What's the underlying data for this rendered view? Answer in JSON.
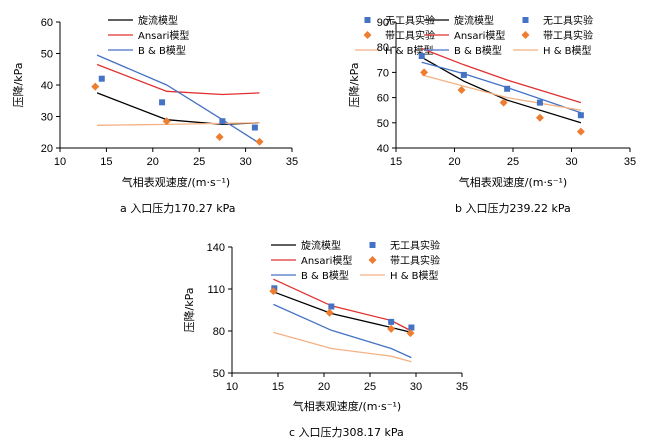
{
  "chart_data": [
    {
      "id": "a",
      "type": "line+scatter",
      "caption": "a  入口压力170.27 kPa",
      "xlabel": "气相表观速度/(m·s⁻¹)",
      "ylabel": "压降/kPa",
      "xlim": [
        10,
        35
      ],
      "ylim": [
        20,
        60
      ],
      "xticks": [
        10,
        15,
        20,
        25,
        30,
        35
      ],
      "yticks": [
        20,
        30,
        40,
        50,
        60
      ],
      "lines": [
        {
          "name": "旋流模型",
          "color": "#000000",
          "x": [
            14,
            21.5,
            27.5,
            31.5
          ],
          "y": [
            37.5,
            29,
            27.5,
            28
          ]
        },
        {
          "name": "Ansari模型",
          "color": "#e03030",
          "x": [
            14,
            21.5,
            27.5,
            31.5
          ],
          "y": [
            46.5,
            38,
            37,
            37.5
          ]
        },
        {
          "name": "B & B模型",
          "color": "#4472c4",
          "x": [
            14,
            21.5,
            27.5,
            31.5
          ],
          "y": [
            49.5,
            40,
            29,
            21.5
          ]
        },
        {
          "name": "H & B模型",
          "color": "#f4b183",
          "x": [
            14,
            21.5,
            27.5,
            31.5
          ],
          "y": [
            27.2,
            27.5,
            27.8,
            28
          ]
        }
      ],
      "points": [
        {
          "name": "无工具实验",
          "color": "#4472c4",
          "marker": "square",
          "x": [
            14.5,
            21,
            27.5,
            31
          ],
          "y": [
            42,
            34.5,
            28.5,
            26.5
          ]
        },
        {
          "name": "带工具实验",
          "color": "#ed7d31",
          "marker": "diamond",
          "x": [
            13.8,
            21.5,
            27.2,
            31.5
          ],
          "y": [
            39.5,
            28.5,
            23.5,
            22
          ]
        }
      ]
    },
    {
      "id": "b",
      "type": "line+scatter",
      "caption": "b  入口压力239.22 kPa",
      "xlabel": "气相表观速度/(m·s⁻¹)",
      "ylabel": "压降/kPa",
      "xlim": [
        15,
        35
      ],
      "ylim": [
        40,
        90
      ],
      "xticks": [
        15,
        20,
        25,
        30,
        35
      ],
      "yticks": [
        40,
        50,
        60,
        70,
        80,
        90
      ],
      "lines": [
        {
          "name": "旋流模型",
          "color": "#000000",
          "x": [
            17.2,
            20.8,
            24.5,
            30.8
          ],
          "y": [
            76,
            66.5,
            59,
            50
          ]
        },
        {
          "name": "Ansari模型",
          "color": "#e03030",
          "x": [
            17.2,
            20.8,
            24.5,
            30.8
          ],
          "y": [
            79.5,
            73,
            67,
            58
          ]
        },
        {
          "name": "B & B模型",
          "color": "#4472c4",
          "x": [
            17.2,
            20.8,
            24.5,
            30.8
          ],
          "y": [
            74,
            69.5,
            64,
            54
          ]
        },
        {
          "name": "H & B模型",
          "color": "#f4b183",
          "x": [
            17.2,
            20.8,
            24.5,
            30.8
          ],
          "y": [
            69,
            64.5,
            60,
            55
          ]
        }
      ],
      "points": [
        {
          "name": "无工具实验",
          "color": "#4472c4",
          "marker": "square",
          "x": [
            17.2,
            20.8,
            24.5,
            27.3,
            30.8
          ],
          "y": [
            76.5,
            69,
            63.5,
            58,
            53
          ]
        },
        {
          "name": "带工具实验",
          "color": "#ed7d31",
          "marker": "diamond",
          "x": [
            17.4,
            20.6,
            24.2,
            27.3,
            30.8
          ],
          "y": [
            70,
            63,
            58,
            52,
            46.5
          ]
        }
      ]
    },
    {
      "id": "c",
      "type": "line+scatter",
      "caption": "c  入口压力308.17 kPa",
      "xlabel": "气相表观速度/(m·s⁻¹)",
      "ylabel": "压降/kPa",
      "xlim": [
        10,
        35
      ],
      "ylim": [
        50,
        140
      ],
      "xticks": [
        10,
        15,
        20,
        25,
        30,
        35
      ],
      "yticks": [
        50,
        80,
        110,
        140
      ],
      "lines": [
        {
          "name": "旋流模型",
          "color": "#000000",
          "x": [
            14.5,
            20.8,
            27.3,
            29.5
          ],
          "y": [
            108,
            92.5,
            82.5,
            79
          ]
        },
        {
          "name": "Ansari模型",
          "color": "#e03030",
          "x": [
            14.5,
            20.8,
            27.3,
            29.5
          ],
          "y": [
            117,
            98,
            87.5,
            80
          ]
        },
        {
          "name": "B & B模型",
          "color": "#4472c4",
          "x": [
            14.5,
            20.8,
            27.3,
            29.5
          ],
          "y": [
            99,
            80.5,
            67.5,
            61
          ]
        },
        {
          "name": "H & B模型",
          "color": "#f4b183",
          "x": [
            14.5,
            20.8,
            27.3,
            29.5
          ],
          "y": [
            79,
            67.5,
            62,
            58
          ]
        }
      ],
      "points": [
        {
          "name": "无工具实验",
          "color": "#4472c4",
          "marker": "square",
          "x": [
            14.6,
            20.8,
            27.3,
            29.5
          ],
          "y": [
            110.5,
            97.5,
            86.5,
            82.5
          ]
        },
        {
          "name": "带工具实验",
          "color": "#ed7d31",
          "marker": "diamond",
          "x": [
            14.5,
            20.6,
            27.3,
            29.4
          ],
          "y": [
            108.5,
            93,
            81.5,
            78.5
          ]
        }
      ]
    }
  ]
}
